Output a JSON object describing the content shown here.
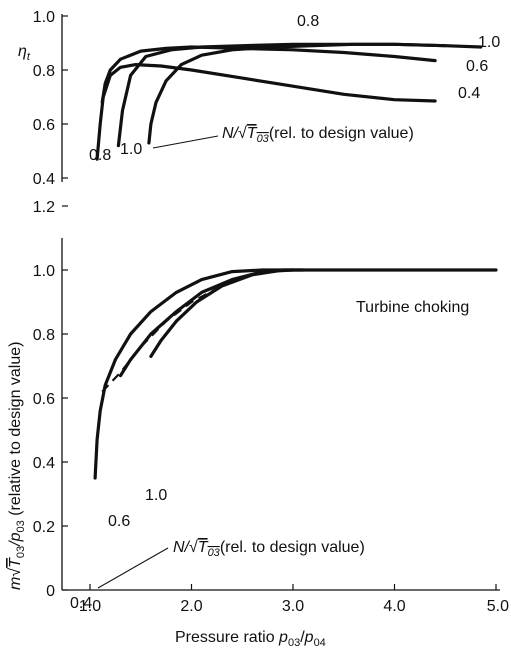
{
  "chart_data": [
    {
      "type": "line",
      "ylabel": "η_t",
      "ylabel_main": "η",
      "ylabel_sub": "t",
      "ylim": [
        0.4,
        1.0
      ],
      "y_ticks": [
        "1.0",
        "0.8",
        "0.6",
        "0.4"
      ],
      "grid": false,
      "annotation": {
        "prefix": "N/√",
        "symbol": "T",
        "sub": "03",
        "suffix": "(rel. to design value)"
      },
      "series": [
        {
          "name": "0.4",
          "end_label": "0.4",
          "x": [
            1.07,
            1.1,
            1.13,
            1.2,
            1.3,
            1.45,
            1.7,
            2.0,
            2.5,
            3.0,
            3.5,
            4.0,
            4.4
          ],
          "y": [
            0.47,
            0.6,
            0.7,
            0.78,
            0.81,
            0.82,
            0.815,
            0.8,
            0.77,
            0.74,
            0.71,
            0.69,
            0.685
          ]
        },
        {
          "name": "0.6",
          "end_label": "0.6",
          "x": [
            1.12,
            1.15,
            1.2,
            1.3,
            1.5,
            1.75,
            2.0,
            2.5,
            3.0,
            3.5,
            4.0,
            4.4
          ],
          "y": [
            0.68,
            0.75,
            0.8,
            0.84,
            0.87,
            0.88,
            0.885,
            0.88,
            0.875,
            0.865,
            0.85,
            0.835
          ]
        },
        {
          "name": "0.8",
          "start_label": "0.8",
          "top_label": "0.8",
          "x": [
            1.28,
            1.32,
            1.4,
            1.55,
            1.8,
            2.1,
            2.5,
            3.0,
            3.5,
            4.0,
            4.5
          ],
          "y": [
            0.52,
            0.65,
            0.78,
            0.85,
            0.875,
            0.885,
            0.89,
            0.895,
            0.895,
            0.895,
            0.89
          ]
        },
        {
          "name": "1.0",
          "start_label": "1.0",
          "end_label": "1.0",
          "x": [
            1.58,
            1.6,
            1.65,
            1.75,
            1.9,
            2.1,
            2.4,
            2.8,
            3.2,
            3.6,
            4.0,
            4.5,
            4.85
          ],
          "y": [
            0.53,
            0.6,
            0.68,
            0.76,
            0.82,
            0.855,
            0.875,
            0.885,
            0.89,
            0.895,
            0.895,
            0.89,
            0.885
          ]
        }
      ]
    },
    {
      "type": "line",
      "xlabel": "Pressure ratio p03/p04",
      "xlabel_prefix": "Pressure ratio ",
      "xlabel_num": "p",
      "xlabel_num_sub": "03",
      "xlabel_den": "p",
      "xlabel_den_sub": "04",
      "ylabel": "m√T03/p03 (relative to design value)",
      "ylabel_parts": {
        "prefix": "m",
        "sym": "T",
        "sub1": "03",
        "slash": "/p",
        "sub2": "03",
        "suffix": " (relative to design value)"
      },
      "xlim": [
        1.0,
        5.0
      ],
      "ylim": [
        0.0,
        1.2
      ],
      "x_ticks": [
        "1.0",
        "2.0",
        "3.0",
        "4.0",
        "5.0"
      ],
      "y_ticks": [
        "1.2",
        "1.0",
        "0.8",
        "0.6",
        "0.4",
        "0.2",
        "0"
      ],
      "grid": false,
      "annotations": {
        "choke": "Turbine choking",
        "speed": {
          "prefix": "N/√",
          "symbol": "T",
          "sub": "03",
          "suffix": "(rel. to design value)"
        }
      },
      "series": [
        {
          "name": "0.4",
          "label": "0.4",
          "x": [
            1.05,
            1.07,
            1.1,
            1.15,
            1.25,
            1.4,
            1.6,
            1.85,
            2.1,
            2.4,
            2.7,
            3.0,
            5.0
          ],
          "y": [
            0.35,
            0.47,
            0.56,
            0.64,
            0.72,
            0.8,
            0.87,
            0.93,
            0.97,
            0.995,
            1.0,
            1.0,
            1.0
          ]
        },
        {
          "name": "0.6",
          "label": "0.6",
          "style": "dashed",
          "x": [
            1.12,
            1.3,
            1.5,
            1.75,
            2.0,
            2.3,
            2.6,
            2.9
          ],
          "y": [
            0.62,
            0.68,
            0.76,
            0.84,
            0.9,
            0.95,
            0.985,
            1.0
          ]
        },
        {
          "name": "0.8",
          "x": [
            1.3,
            1.4,
            1.6,
            1.85,
            2.1,
            2.4,
            2.7,
            3.0
          ],
          "y": [
            0.67,
            0.72,
            0.8,
            0.87,
            0.93,
            0.97,
            0.995,
            1.0
          ]
        },
        {
          "name": "1.0",
          "label": "1.0",
          "x": [
            1.6,
            1.7,
            1.85,
            2.05,
            2.3,
            2.6,
            2.9,
            3.1
          ],
          "y": [
            0.73,
            0.78,
            0.84,
            0.9,
            0.95,
            0.985,
            1.0,
            1.0
          ]
        }
      ]
    }
  ]
}
